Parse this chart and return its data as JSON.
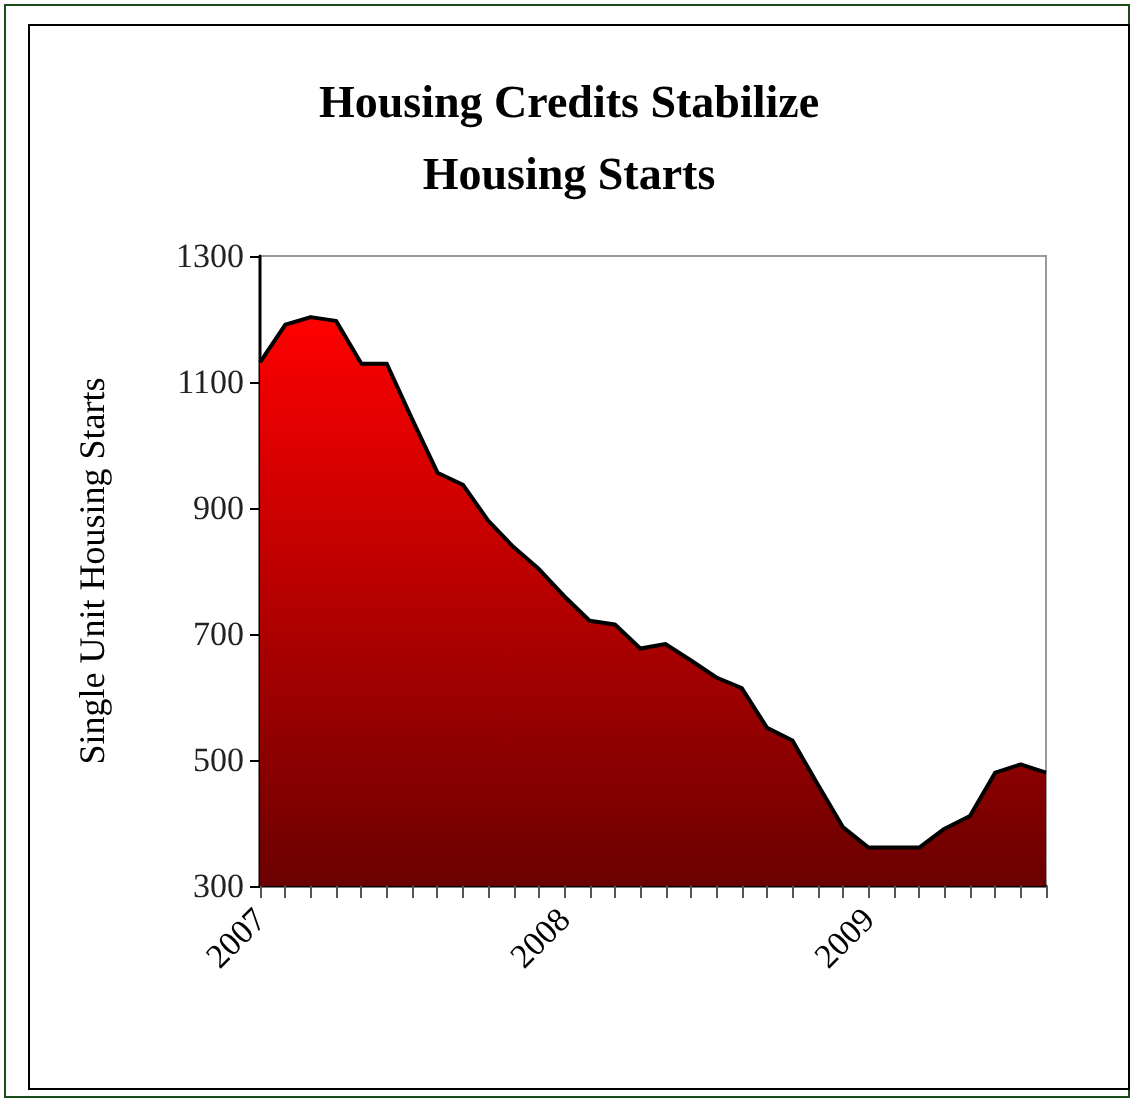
{
  "chart_data": {
    "type": "area",
    "title": "Housing Credits Stabilize\nHousing Starts",
    "ylabel": "Single Unit Housing Starts",
    "categories": [
      "2007",
      null,
      null,
      null,
      null,
      null,
      null,
      null,
      null,
      null,
      null,
      null,
      "2008",
      null,
      null,
      null,
      null,
      null,
      null,
      null,
      null,
      null,
      null,
      null,
      "2009",
      null,
      null,
      null,
      null,
      null,
      null,
      null
    ],
    "series": [
      {
        "color": "#ff0000",
        "values": [
          1131,
          1191,
          1203,
          1197,
          1129,
          1129,
          1041,
          956,
          937,
          880,
          838,
          803,
          760,
          721,
          715,
          677,
          684,
          658,
          631,
          614,
          551,
          531,
          461,
          393,
          361,
          361,
          361,
          391,
          411,
          480,
          493,
          480
        ]
      }
    ],
    "ylim": [
      300,
      1300
    ],
    "yticks": [
      300,
      500,
      700,
      900,
      1100,
      1300
    ],
    "grid": false,
    "marker": "none",
    "line_style": "solid"
  }
}
